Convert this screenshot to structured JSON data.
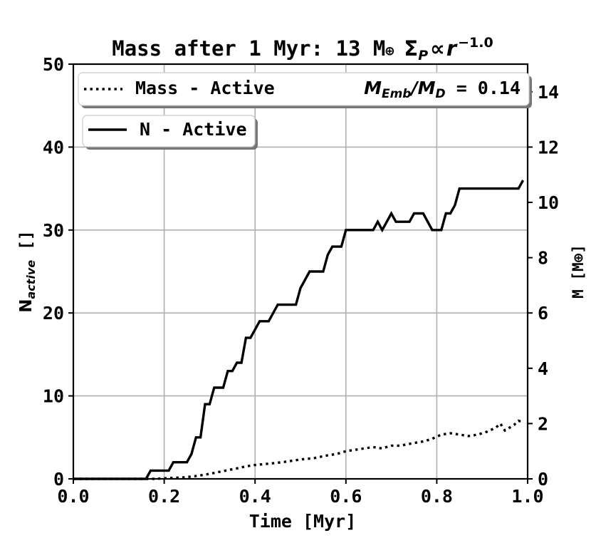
{
  "chart_data": {
    "type": "line",
    "title": {
      "prefix": "Mass after 1 Myr: 13 M",
      "earth_symbol": "⊕",
      "sigma": "Σ",
      "sigma_sub": "P",
      "propto": "∝",
      "r": "r",
      "exponent": "−1.0"
    },
    "xlabel": "Time [Myr]",
    "ylabel_left": {
      "main": "N",
      "sub": "active",
      "unit": " []"
    },
    "ylabel_right": "M [M⊕]",
    "xlim": [
      0.0,
      1.0
    ],
    "ylim_left": [
      0,
      50
    ],
    "ylim_right": [
      0,
      15
    ],
    "x_ticks": [
      "0.0",
      "0.2",
      "0.4",
      "0.6",
      "0.8",
      "1.0"
    ],
    "y_left_ticks": [
      "0",
      "10",
      "20",
      "30",
      "40",
      "50"
    ],
    "y_right_ticks": [
      "0",
      "2",
      "4",
      "6",
      "8",
      "10",
      "12",
      "14"
    ],
    "grid": true,
    "legend_mass": "Mass - Active",
    "legend_ratio": {
      "m1": "M",
      "s1": "Emb",
      "slash": "/",
      "m2": "M",
      "s2": "D",
      "value": " = 0.14"
    },
    "legend_n": "N - Active",
    "series": [
      {
        "name": "N - Active",
        "axis": "left",
        "style": "solid",
        "points": [
          [
            0.0,
            0
          ],
          [
            0.16,
            0
          ],
          [
            0.17,
            1
          ],
          [
            0.2,
            1
          ],
          [
            0.21,
            1
          ],
          [
            0.22,
            2
          ],
          [
            0.25,
            2
          ],
          [
            0.26,
            3
          ],
          [
            0.27,
            5
          ],
          [
            0.28,
            5
          ],
          [
            0.29,
            9
          ],
          [
            0.3,
            9
          ],
          [
            0.31,
            11
          ],
          [
            0.33,
            11
          ],
          [
            0.34,
            13
          ],
          [
            0.35,
            13
          ],
          [
            0.36,
            14
          ],
          [
            0.37,
            14
          ],
          [
            0.38,
            17
          ],
          [
            0.39,
            17
          ],
          [
            0.41,
            19
          ],
          [
            0.43,
            19
          ],
          [
            0.45,
            21
          ],
          [
            0.49,
            21
          ],
          [
            0.5,
            23
          ],
          [
            0.52,
            25
          ],
          [
            0.55,
            25
          ],
          [
            0.56,
            27
          ],
          [
            0.57,
            28
          ],
          [
            0.59,
            28
          ],
          [
            0.6,
            30
          ],
          [
            0.66,
            30
          ],
          [
            0.67,
            31
          ],
          [
            0.68,
            30
          ],
          [
            0.7,
            32
          ],
          [
            0.71,
            31
          ],
          [
            0.74,
            31
          ],
          [
            0.75,
            32
          ],
          [
            0.77,
            32
          ],
          [
            0.79,
            30
          ],
          [
            0.81,
            30
          ],
          [
            0.82,
            32
          ],
          [
            0.83,
            32
          ],
          [
            0.84,
            33
          ],
          [
            0.85,
            35
          ],
          [
            0.98,
            35
          ],
          [
            0.99,
            36
          ]
        ]
      },
      {
        "name": "Mass - Active",
        "axis": "right",
        "style": "dotted",
        "points": [
          [
            0.0,
            0
          ],
          [
            0.18,
            0
          ],
          [
            0.2,
            0.02
          ],
          [
            0.24,
            0.05
          ],
          [
            0.27,
            0.1
          ],
          [
            0.3,
            0.18
          ],
          [
            0.33,
            0.28
          ],
          [
            0.36,
            0.38
          ],
          [
            0.38,
            0.45
          ],
          [
            0.4,
            0.5
          ],
          [
            0.43,
            0.55
          ],
          [
            0.46,
            0.6
          ],
          [
            0.5,
            0.7
          ],
          [
            0.53,
            0.75
          ],
          [
            0.56,
            0.85
          ],
          [
            0.58,
            0.9
          ],
          [
            0.6,
            1.0
          ],
          [
            0.62,
            1.05
          ],
          [
            0.64,
            1.1
          ],
          [
            0.66,
            1.15
          ],
          [
            0.68,
            1.1
          ],
          [
            0.7,
            1.2
          ],
          [
            0.72,
            1.2
          ],
          [
            0.75,
            1.3
          ],
          [
            0.77,
            1.35
          ],
          [
            0.79,
            1.45
          ],
          [
            0.81,
            1.6
          ],
          [
            0.83,
            1.65
          ],
          [
            0.85,
            1.6
          ],
          [
            0.87,
            1.55
          ],
          [
            0.89,
            1.6
          ],
          [
            0.91,
            1.7
          ],
          [
            0.93,
            1.85
          ],
          [
            0.94,
            2.0
          ],
          [
            0.95,
            1.75
          ],
          [
            0.96,
            1.85
          ],
          [
            0.97,
            1.95
          ],
          [
            0.98,
            2.1
          ],
          [
            0.99,
            2.05
          ]
        ]
      }
    ]
  }
}
